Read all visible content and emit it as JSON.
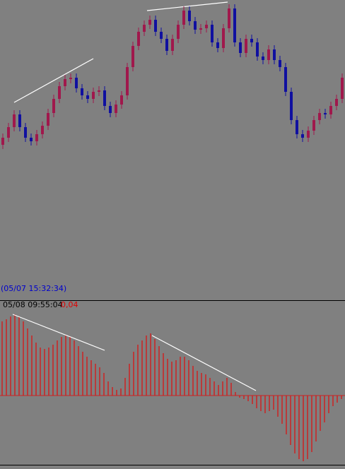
{
  "chart_data": [
    {
      "type": "candlestick",
      "annotation": "(05/07 15:32:34)",
      "up_color": "#a0184c",
      "down_color": "#1010a0",
      "ylim": [
        0,
        425
      ],
      "open": [
        220,
        230,
        245,
        263,
        245,
        230,
        225,
        235,
        247,
        265,
        285,
        303,
        313,
        315,
        300,
        290,
        285,
        295,
        297,
        275,
        265,
        277,
        290,
        330,
        360,
        380,
        390,
        397,
        380,
        370,
        353,
        370,
        390,
        410,
        395,
        383,
        385,
        390,
        365,
        357,
        385,
        413,
        365,
        350,
        370,
        365,
        345,
        340,
        355,
        340,
        330,
        295,
        255,
        235,
        230,
        240,
        255,
        265,
        263,
        275,
        285
      ],
      "high": [
        236,
        251,
        269,
        269,
        251,
        236,
        241,
        253,
        271,
        291,
        309,
        319,
        321,
        321,
        306,
        296,
        301,
        303,
        303,
        281,
        283,
        296,
        336,
        366,
        386,
        396,
        403,
        403,
        386,
        376,
        376,
        396,
        416,
        416,
        401,
        391,
        396,
        396,
        371,
        391,
        419,
        419,
        371,
        376,
        376,
        371,
        351,
        361,
        361,
        346,
        336,
        301,
        261,
        241,
        246,
        261,
        271,
        271,
        281,
        291,
        321
      ],
      "low": [
        214,
        224,
        239,
        239,
        224,
        219,
        219,
        229,
        241,
        259,
        279,
        297,
        307,
        294,
        284,
        279,
        279,
        289,
        269,
        259,
        259,
        271,
        284,
        324,
        354,
        374,
        384,
        374,
        364,
        347,
        347,
        364,
        384,
        389,
        377,
        377,
        379,
        359,
        351,
        351,
        379,
        359,
        344,
        344,
        359,
        339,
        334,
        334,
        334,
        324,
        289,
        249,
        229,
        224,
        224,
        234,
        249,
        257,
        257,
        269,
        279
      ],
      "close": [
        230,
        245,
        263,
        245,
        230,
        225,
        235,
        247,
        265,
        285,
        303,
        313,
        315,
        300,
        290,
        285,
        295,
        297,
        275,
        265,
        277,
        290,
        330,
        360,
        380,
        390,
        397,
        380,
        370,
        353,
        370,
        390,
        410,
        395,
        383,
        385,
        390,
        365,
        357,
        385,
        413,
        365,
        350,
        370,
        365,
        345,
        340,
        355,
        340,
        330,
        295,
        255,
        235,
        230,
        240,
        255,
        265,
        263,
        275,
        285,
        315
      ]
    },
    {
      "type": "bar",
      "timestamp": "05/08 09:55:04",
      "readout": "0,04",
      "color": "#cc2222",
      "ylim": [
        -100,
        122
      ],
      "values": [
        105,
        108,
        112,
        115,
        112,
        105,
        95,
        85,
        75,
        68,
        66,
        68,
        72,
        78,
        83,
        85,
        83,
        78,
        70,
        62,
        55,
        50,
        45,
        40,
        32,
        20,
        12,
        8,
        10,
        25,
        45,
        62,
        72,
        78,
        85,
        88,
        80,
        70,
        60,
        52,
        48,
        50,
        55,
        55,
        50,
        42,
        35,
        32,
        30,
        25,
        20,
        15,
        20,
        25,
        18,
        5,
        -3,
        -5,
        -8,
        -12,
        -18,
        -22,
        -25,
        -22,
        -20,
        -30,
        -40,
        -55,
        -70,
        -82,
        -90,
        -93,
        -90,
        -80,
        -65,
        -50,
        -38,
        -25,
        -15,
        -10,
        -5
      ]
    }
  ]
}
